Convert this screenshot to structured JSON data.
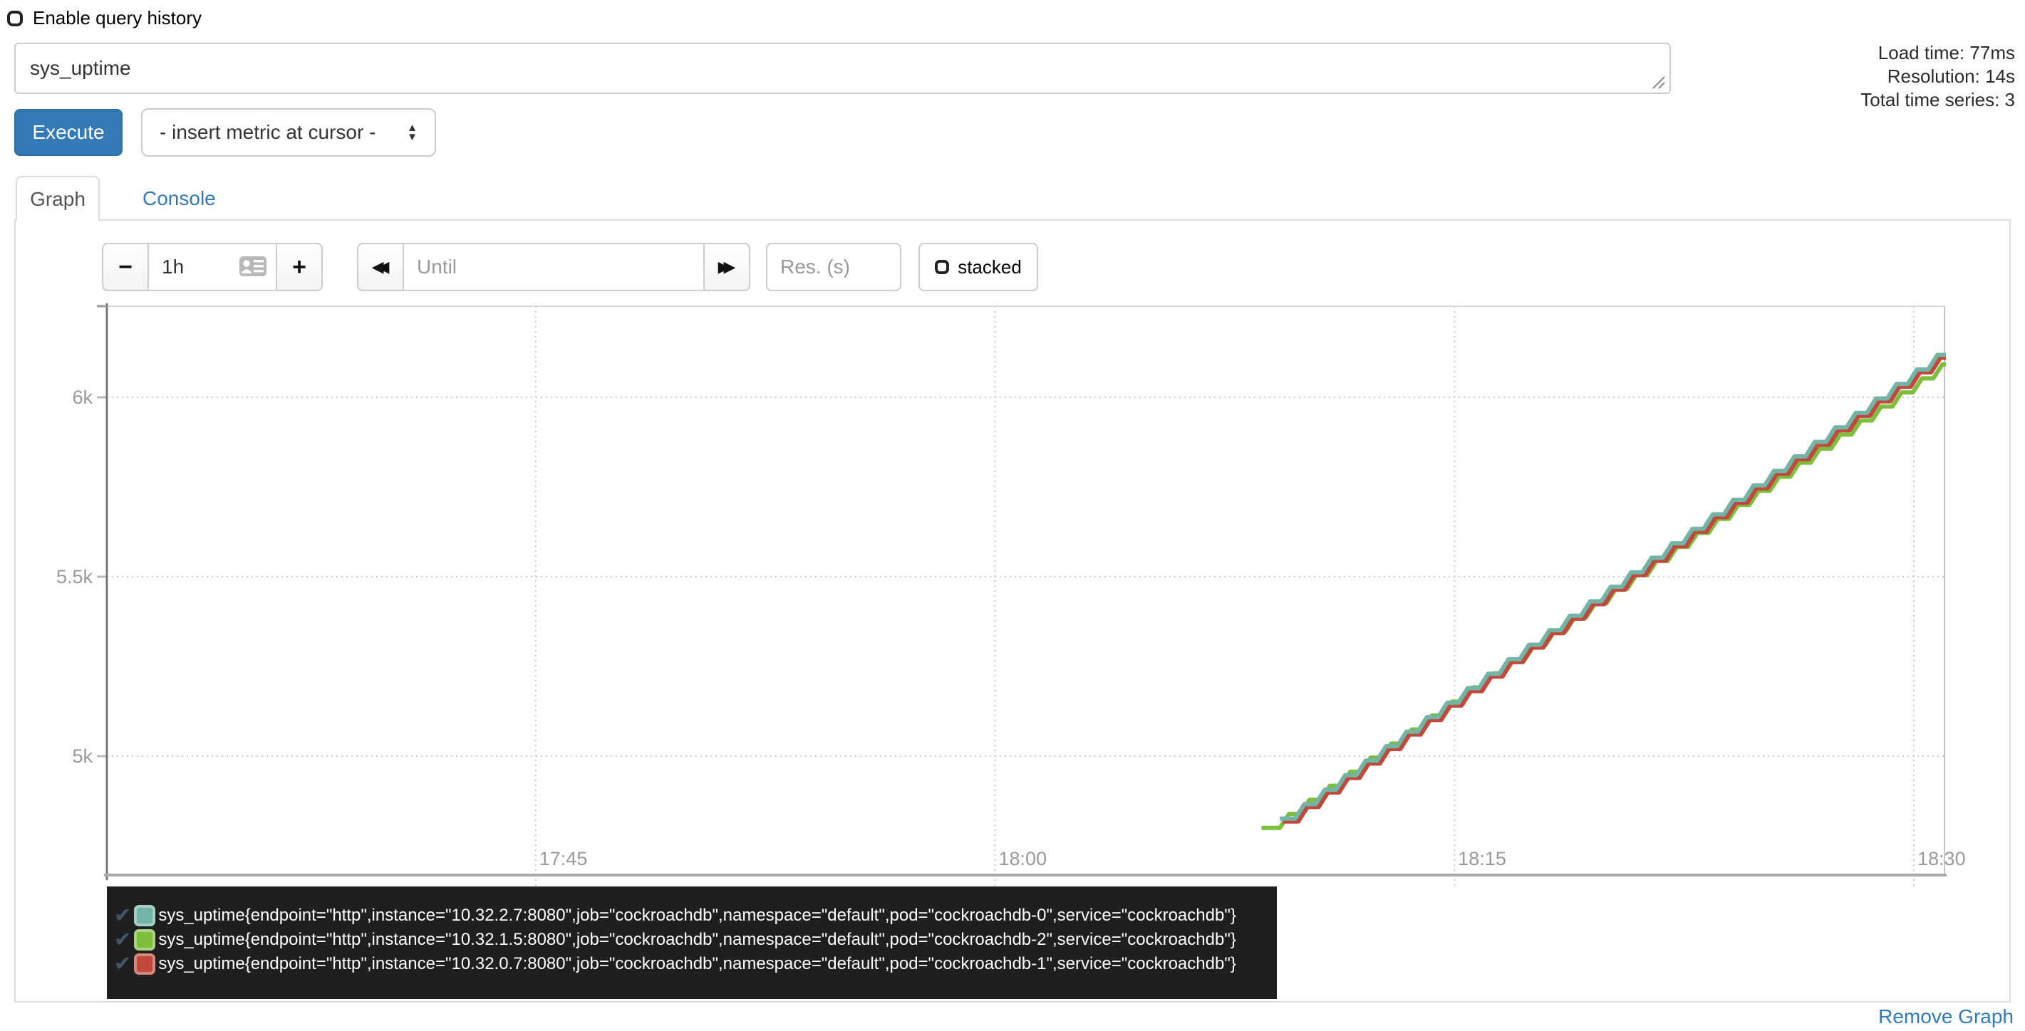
{
  "header": {
    "history_label": "Enable query history",
    "query_value": "sys_uptime",
    "stats": {
      "load_time": "Load time: 77ms",
      "resolution": "Resolution: 14s",
      "total_series": "Total time series: 3"
    }
  },
  "toolbar": {
    "execute_label": "Execute",
    "metric_select_label": "- insert metric at cursor -"
  },
  "tabs": [
    {
      "label": "Graph",
      "active": true
    },
    {
      "label": "Console",
      "active": false
    }
  ],
  "graph_controls": {
    "shrink_label": "−",
    "grow_label": "+",
    "range_value": "1h",
    "back_label": "◀◀",
    "forward_label": "▶▶",
    "until_placeholder": "Until",
    "res_placeholder": "Res. (s)",
    "stacked_label": "stacked"
  },
  "footer": {
    "remove_graph_label": "Remove Graph"
  },
  "colors": {
    "accent": "#337ab7",
    "legend_bg": "#1f1f1f",
    "legend_check": "#44566b",
    "grid": "#cccccc",
    "axis_text": "#999999"
  },
  "chart_data": {
    "type": "line",
    "title": "",
    "xlabel": "",
    "ylabel": "",
    "grid": true,
    "legend_position": "bottom-left",
    "x_axis": {
      "start_time": "17:31",
      "end_time": "18:31",
      "domain_minutes": [
        0,
        60
      ],
      "ticks": [
        {
          "t": 14,
          "label": "17:45"
        },
        {
          "t": 29,
          "label": "18:00"
        },
        {
          "t": 44,
          "label": "18:15"
        },
        {
          "t": 59,
          "label": "18:30"
        }
      ]
    },
    "y_axis": {
      "domain": [
        4673,
        6254
      ],
      "ticks": [
        {
          "v": 5000,
          "label": "5k"
        },
        {
          "v": 5500,
          "label": "5.5k"
        },
        {
          "v": 6000,
          "label": "6k"
        }
      ]
    },
    "step_seconds": 40,
    "draw_order": [
      1,
      2,
      0
    ],
    "series": [
      {
        "label": "sys_uptime{endpoint=\"http\",instance=\"10.32.2.7:8080\",job=\"cockroachdb\",namespace=\"default\",pod=\"cockroachdb-0\",service=\"cockroachdb\"}",
        "color": "#72b5a6",
        "points": [
          [
            38.3,
            4826
          ],
          [
            38.8,
            4826
          ],
          [
            60.05,
            6118
          ]
        ]
      },
      {
        "label": "sys_uptime{endpoint=\"http\",instance=\"10.32.1.5:8080\",job=\"cockroachdb\",namespace=\"default\",pod=\"cockroachdb-2\",service=\"cockroachdb\"}",
        "color": "#7dbe3c",
        "points": [
          [
            37.7,
            4800
          ],
          [
            38.3,
            4800
          ],
          [
            60.05,
            6092
          ]
        ]
      },
      {
        "label": "sys_uptime{endpoint=\"http\",instance=\"10.32.0.7:8080\",job=\"cockroachdb\",namespace=\"default\",pod=\"cockroachdb-1\",service=\"cockroachdb\"}",
        "color": "#c1493b",
        "points": [
          [
            38.4,
            4818
          ],
          [
            38.9,
            4818
          ],
          [
            60.05,
            6110
          ]
        ]
      }
    ]
  }
}
